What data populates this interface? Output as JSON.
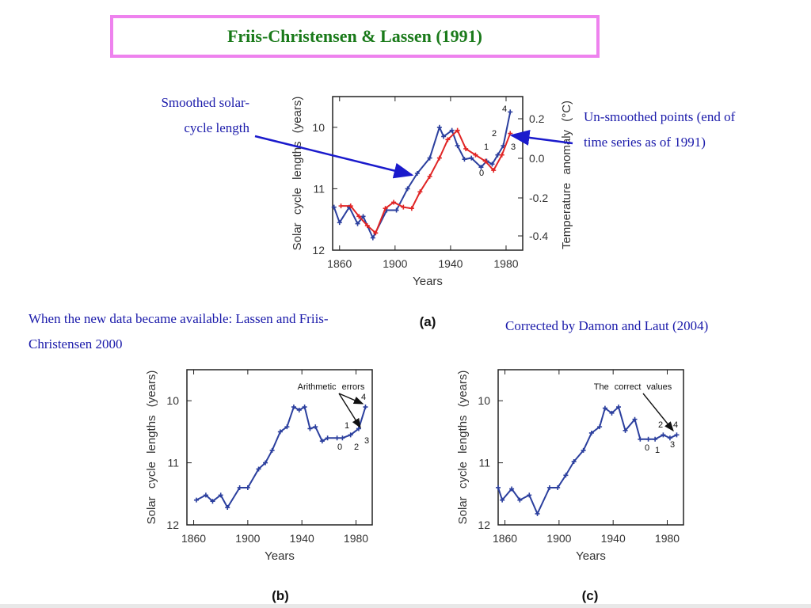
{
  "title": "Friis-Christensen & Lassen (1991)",
  "notes": {
    "smoothed": "Smoothed solar-cycle length",
    "smoothed_line1": "Smoothed solar-",
    "smoothed_line2": "cycle length",
    "unsmoothed_line1": "Un-smoothed points (end of",
    "unsmoothed_line2": "time series as of 1991)",
    "new_data_line1": "When the new data became available: Lassen and Friis-",
    "new_data_line2": "Christensen 2000",
    "corrected": "Corrected by Damon and Laut (2004)"
  },
  "colors": {
    "blue": "#2b3f9e",
    "red": "#e02424",
    "arrow_blue": "#1a1acc",
    "pink": "#ee82ee"
  },
  "chart_data": [
    {
      "type": "line",
      "panel": "(a)",
      "xlabel": "Years",
      "ylabel": "Solar cycle lengths (years)",
      "ylabel_right": "Temperature anomaly (°C)",
      "xlim": [
        1855,
        1992
      ],
      "ylim": [
        12,
        9.5
      ],
      "xticks": [
        1860,
        1900,
        1940,
        1980
      ],
      "yticks": [
        10,
        11,
        12
      ],
      "yticks_right": [
        "0.2",
        "0.0",
        "-0.2",
        "-0.4"
      ],
      "series": [
        {
          "role": "solar",
          "color": "#2b3f9e",
          "x": [
            1856,
            1860,
            1867,
            1873,
            1877,
            1884,
            1894,
            1901,
            1909,
            1916,
            1925,
            1932,
            1935,
            1941,
            1945,
            1950,
            1955,
            1962,
            1966,
            1970,
            1974,
            1978,
            1983
          ],
          "y": [
            11.3,
            11.55,
            11.3,
            11.57,
            11.45,
            11.8,
            11.35,
            11.35,
            11.0,
            10.75,
            10.5,
            10.0,
            10.15,
            10.05,
            10.3,
            10.52,
            10.5,
            10.65,
            10.55,
            10.6,
            10.45,
            10.3,
            9.75
          ]
        },
        {
          "role": "temperature",
          "color": "#e02424",
          "x": [
            1861,
            1868,
            1874,
            1880,
            1886,
            1893,
            1899,
            1906,
            1912,
            1918,
            1925,
            1932,
            1938,
            1945,
            1951,
            1958,
            1965,
            1971,
            1977,
            1983
          ],
          "y": [
            11.28,
            11.28,
            11.45,
            11.6,
            11.72,
            11.32,
            11.22,
            11.3,
            11.32,
            11.05,
            10.8,
            10.5,
            10.2,
            10.05,
            10.35,
            10.45,
            10.55,
            10.7,
            10.45,
            10.1
          ]
        }
      ],
      "annotations": [
        "0",
        "1",
        "2",
        "3",
        "4"
      ]
    },
    {
      "type": "line",
      "panel": "(b)",
      "xlabel": "Years",
      "ylabel": "Solar cycle lengths (years)",
      "xlim": [
        1855,
        1992
      ],
      "ylim": [
        12,
        9.5
      ],
      "xticks": [
        1860,
        1900,
        1940,
        1980
      ],
      "yticks": [
        10,
        11,
        12
      ],
      "annotation_text": "Arithmetic errors",
      "annotations": [
        "0",
        "1",
        "2",
        "3",
        "4"
      ],
      "series": [
        {
          "color": "#2b3f9e",
          "x": [
            1862,
            1869,
            1874,
            1880,
            1885,
            1894,
            1900,
            1908,
            1913,
            1918,
            1924,
            1929,
            1934,
            1938,
            1942,
            1946,
            1950,
            1955,
            1959,
            1966,
            1970,
            1976,
            1982,
            1987
          ],
          "y": [
            11.6,
            11.52,
            11.62,
            11.52,
            11.72,
            11.4,
            11.4,
            11.1,
            11.0,
            10.8,
            10.5,
            10.42,
            10.1,
            10.15,
            10.1,
            10.45,
            10.42,
            10.65,
            10.6,
            10.6,
            10.6,
            10.55,
            10.45,
            10.1
          ]
        }
      ]
    },
    {
      "type": "line",
      "panel": "(c)",
      "xlabel": "Years",
      "ylabel": "Solar cycle lengths (years)",
      "xlim": [
        1855,
        1992
      ],
      "ylim": [
        12,
        9.5
      ],
      "xticks": [
        1860,
        1900,
        1940,
        1980
      ],
      "yticks": [
        10,
        11,
        12
      ],
      "annotation_text": "The correct values",
      "annotations": [
        "0",
        "1",
        "2",
        "3",
        "4"
      ],
      "series": [
        {
          "color": "#2b3f9e",
          "x": [
            1855,
            1858,
            1865,
            1871,
            1878,
            1884,
            1893,
            1899,
            1905,
            1911,
            1918,
            1924,
            1930,
            1934,
            1939,
            1944,
            1949,
            1956,
            1960,
            1966,
            1971,
            1977,
            1982,
            1987
          ],
          "y": [
            11.4,
            11.6,
            11.42,
            11.6,
            11.52,
            11.82,
            11.4,
            11.4,
            11.2,
            10.98,
            10.8,
            10.52,
            10.42,
            10.12,
            10.2,
            10.1,
            10.48,
            10.3,
            10.62,
            10.62,
            10.62,
            10.55,
            10.6,
            10.55
          ]
        }
      ]
    }
  ]
}
